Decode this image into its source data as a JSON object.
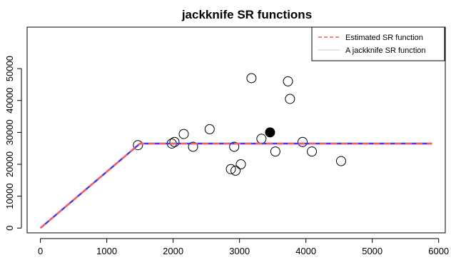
{
  "chart_data": {
    "type": "scatter",
    "title": "jackknife SR functions",
    "xlabel": "",
    "ylabel": "",
    "xlim": [
      -200,
      6100
    ],
    "ylim": [
      -1500,
      63000
    ],
    "x_ticks": [
      0,
      1000,
      2000,
      3000,
      4000,
      5000,
      6000
    ],
    "y_ticks": [
      0,
      10000,
      20000,
      30000,
      40000,
      50000
    ],
    "grid": false,
    "legend_position": "top-right",
    "points": [
      {
        "x": 1470,
        "y": 26000
      },
      {
        "x": 1980,
        "y": 26500
      },
      {
        "x": 2020,
        "y": 27000
      },
      {
        "x": 2160,
        "y": 29500
      },
      {
        "x": 2300,
        "y": 25500
      },
      {
        "x": 2550,
        "y": 31000
      },
      {
        "x": 2870,
        "y": 18500
      },
      {
        "x": 2920,
        "y": 25500
      },
      {
        "x": 2940,
        "y": 18000
      },
      {
        "x": 3020,
        "y": 20000
      },
      {
        "x": 3180,
        "y": 47000
      },
      {
        "x": 3330,
        "y": 28000
      },
      {
        "x": 3540,
        "y": 24000
      },
      {
        "x": 3730,
        "y": 46000
      },
      {
        "x": 3760,
        "y": 40500
      },
      {
        "x": 3950,
        "y": 27000
      },
      {
        "x": 4090,
        "y": 24000
      },
      {
        "x": 4530,
        "y": 21000
      }
    ],
    "highlight_point": {
      "x": 3460,
      "y": 30000
    },
    "series": [
      {
        "name": "Estimated SR function",
        "style": "dashed",
        "color": "#ff5a5f",
        "x": [
          0,
          1500,
          5900
        ],
        "y": [
          0,
          26500,
          26500
        ]
      },
      {
        "name": "A jackknife SR function",
        "style": "solid",
        "color": "#3b3bff",
        "x": [
          0,
          1500,
          5900
        ],
        "y": [
          0,
          26500,
          26500
        ]
      }
    ]
  },
  "colors": {
    "jackknife_line": "#3b3bff",
    "estimate_line": "#ff5a5f",
    "legend_jackknife_sample": "#c8c8c8",
    "axis": "#000000"
  }
}
